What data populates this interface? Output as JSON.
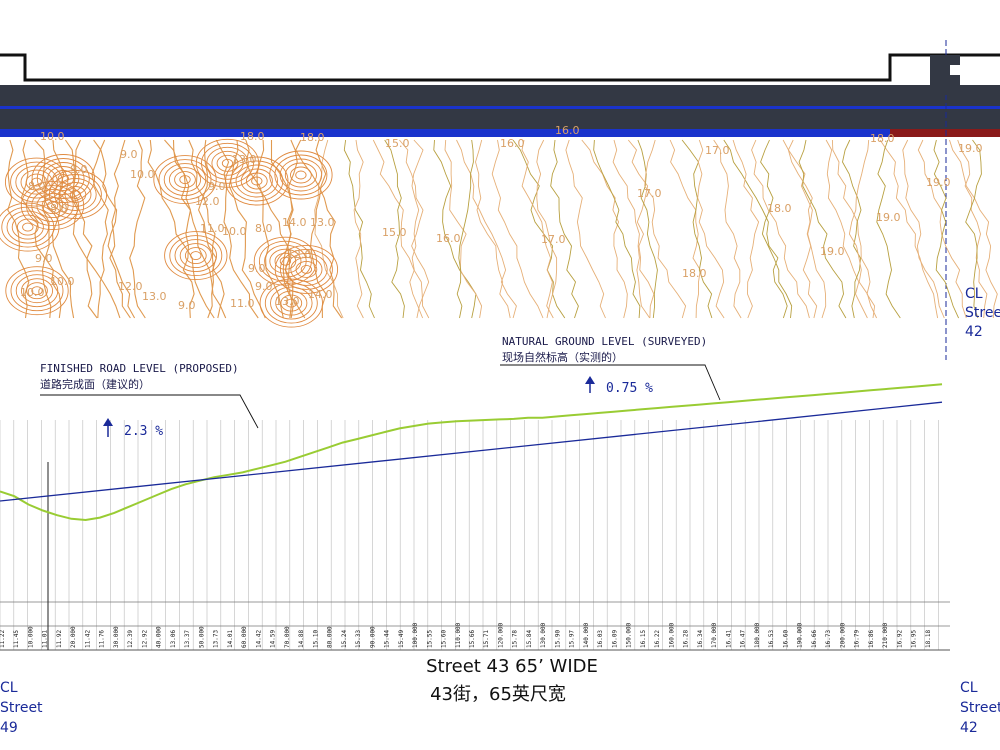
{
  "plan": {
    "contour_labels": [
      "10.0",
      "9.0",
      "10.0",
      "9.0",
      "13.0",
      "8.0",
      "8.0",
      "9.0",
      "12.0",
      "11.0",
      "10.0",
      "8.0",
      "13.0",
      "14.0",
      "12.0",
      "13.0",
      "9.0",
      "9.0",
      "10.0",
      "13.0",
      "10.0",
      "11.0",
      "14.0",
      "12.0",
      "9.0",
      "9.0",
      "15.0",
      "16.0",
      "17.0",
      "17.0",
      "15.0",
      "16.0",
      "17.0",
      "18.0",
      "18.0",
      "19.0",
      "19.0",
      "19.0",
      "19.0",
      "18.0",
      "18.0",
      "18.0",
      "16.0"
    ]
  },
  "profile": {
    "finished_label_en": "FINISHED ROAD LEVEL (PROPOSED)",
    "finished_label_cn": "道路完成面（建议的）",
    "natural_label_en": "NATURAL GROUND LEVEL (SURVEYED)",
    "natural_label_cn": "现场自然标高（实测的）",
    "grade_left": "2.3 %",
    "grade_right": "0.75 %",
    "finished_level_curve": [
      8.6,
      16.9
    ],
    "natural_level_curve": [
      9.4,
      9.0,
      8.3,
      7.8,
      7.4,
      7.1,
      7.0,
      7.2,
      7.6,
      8.1,
      8.6,
      9.1,
      9.6,
      10.0,
      10.3,
      10.6,
      10.8,
      11.0,
      11.3,
      11.6,
      11.9,
      12.3,
      12.7,
      13.1,
      13.5,
      13.8,
      14.1,
      14.4,
      14.7,
      14.9,
      15.1,
      15.2,
      15.3,
      15.35,
      15.4,
      15.45,
      15.5,
      15.6,
      15.6,
      15.7,
      15.8,
      15.9,
      16.0,
      16.1,
      16.2,
      16.3,
      16.4,
      16.5,
      16.6,
      16.7,
      16.8,
      16.9,
      17.0,
      17.1,
      17.2,
      17.3,
      17.4,
      17.5,
      17.6,
      17.7,
      17.8,
      17.9,
      18.0,
      18.1,
      18.2,
      18.3,
      18.4
    ],
    "chainage_labels": [
      "11.22",
      "11.45",
      "10.000",
      "11.01",
      "11.92",
      "20.000",
      "11.42",
      "11.76",
      "30.000",
      "12.39",
      "12.92",
      "40.000",
      "13.06",
      "13.37",
      "50.000",
      "13.73",
      "14.01",
      "60.000",
      "14.42",
      "14.59",
      "70.000",
      "14.88",
      "15.10",
      "80.000",
      "15.24",
      "15.33",
      "90.000",
      "15.44",
      "15.49",
      "100.000",
      "15.55",
      "15.60",
      "110.000",
      "15.66",
      "15.71",
      "120.000",
      "15.78",
      "15.84",
      "130.000",
      "15.90",
      "15.97",
      "140.000",
      "16.03",
      "16.09",
      "150.000",
      "16.15",
      "16.22",
      "160.000",
      "16.28",
      "16.34",
      "170.000",
      "16.41",
      "16.47",
      "180.000",
      "16.53",
      "16.60",
      "190.000",
      "16.66",
      "16.73",
      "200.000",
      "16.79",
      "16.86",
      "210.000",
      "16.92",
      "16.95",
      "18.18"
    ]
  },
  "title_en": "Street 43 65’ WIDE",
  "title_cn": "43街，65英尺宽",
  "cl_left": {
    "line1": "CL",
    "line2": "Street",
    "line3": "49"
  },
  "cl_right_top": {
    "line1": "CL",
    "line2": "Stree",
    "line3": "42"
  },
  "cl_right_bottom": {
    "line1": "CL",
    "line2": "Street",
    "line3": "42"
  },
  "colors": {
    "finished": "#1a2a99",
    "natural": "#99cc33",
    "contour": "#e09a50",
    "road": "#333844",
    "blue": "#1a33cc"
  }
}
